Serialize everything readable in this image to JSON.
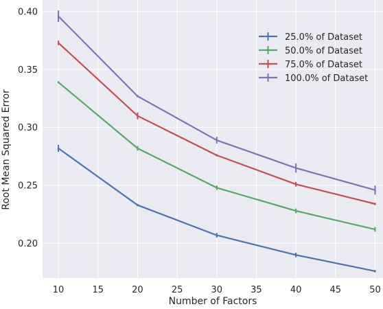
{
  "chart_data": {
    "type": "line",
    "title": "",
    "xlabel": "Number of Factors",
    "ylabel": "Root Mean Squared Error",
    "x": [
      10,
      20,
      30,
      40,
      50
    ],
    "xticks": [
      10,
      15,
      20,
      25,
      30,
      35,
      40,
      45,
      50
    ],
    "yticks": [
      0.2,
      0.25,
      0.3,
      0.35,
      0.4
    ],
    "xlim": [
      8,
      51
    ],
    "ylim": [
      0.17,
      0.41
    ],
    "grid": true,
    "legend_position": "top-right",
    "series": [
      {
        "name": "25.0% of Dataset",
        "color": "#4c72b0",
        "values": [
          0.282,
          0.233,
          0.207,
          0.19,
          0.176
        ],
        "errors": [
          0.003,
          0.001,
          0.002,
          0.002,
          0.001
        ]
      },
      {
        "name": "50.0% of Dataset",
        "color": "#55a868",
        "values": [
          0.339,
          0.282,
          0.248,
          0.228,
          0.212
        ],
        "errors": [
          0.001,
          0.002,
          0.002,
          0.002,
          0.002
        ]
      },
      {
        "name": "75.0% of Dataset",
        "color": "#c44e52",
        "values": [
          0.373,
          0.31,
          0.276,
          0.251,
          0.234
        ],
        "errors": [
          0.002,
          0.003,
          0.001,
          0.002,
          0.001
        ]
      },
      {
        "name": "100.0% of Dataset",
        "color": "#8172b3",
        "values": [
          0.396,
          0.327,
          0.289,
          0.265,
          0.246
        ],
        "errors": [
          0.005,
          0.001,
          0.003,
          0.004,
          0.004
        ]
      }
    ]
  }
}
